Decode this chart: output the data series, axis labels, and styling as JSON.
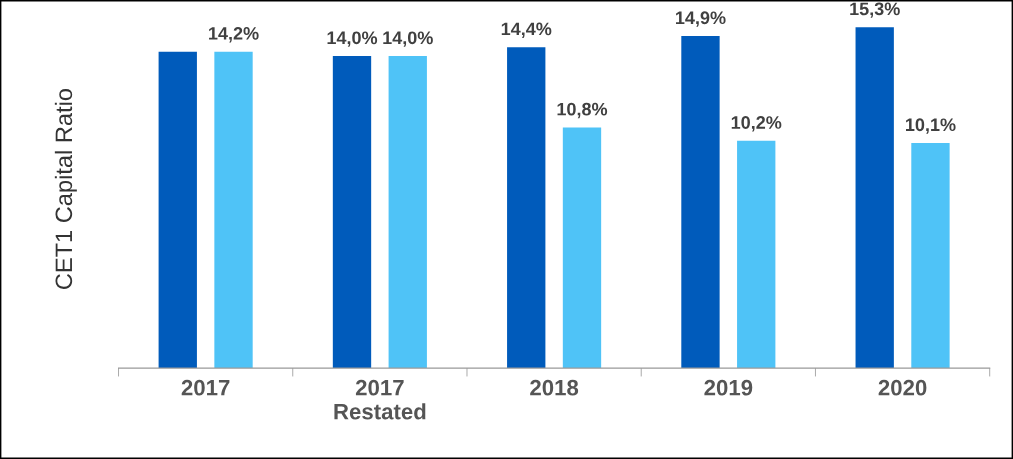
{
  "chart_data": {
    "type": "bar",
    "ylabel": "CET1 Capital Ratio",
    "categories": [
      "2017",
      "2017\nRestated",
      "2018",
      "2019",
      "2020"
    ],
    "series": [
      {
        "color": "#005bbb",
        "values": [
          14.2,
          14.0,
          14.4,
          14.9,
          15.3
        ],
        "value_labels": [
          null,
          "14,0%",
          "14,4%",
          "14,9%",
          "15,3%"
        ]
      },
      {
        "color": "#4fc3f7",
        "values": [
          14.2,
          14.0,
          10.8,
          10.2,
          10.1
        ],
        "value_labels": [
          "14,2%",
          "14,0%",
          "10,8%",
          "10,2%",
          "10,1%"
        ]
      }
    ],
    "tick_labels": "x",
    "grid": false,
    "legend": false
  }
}
